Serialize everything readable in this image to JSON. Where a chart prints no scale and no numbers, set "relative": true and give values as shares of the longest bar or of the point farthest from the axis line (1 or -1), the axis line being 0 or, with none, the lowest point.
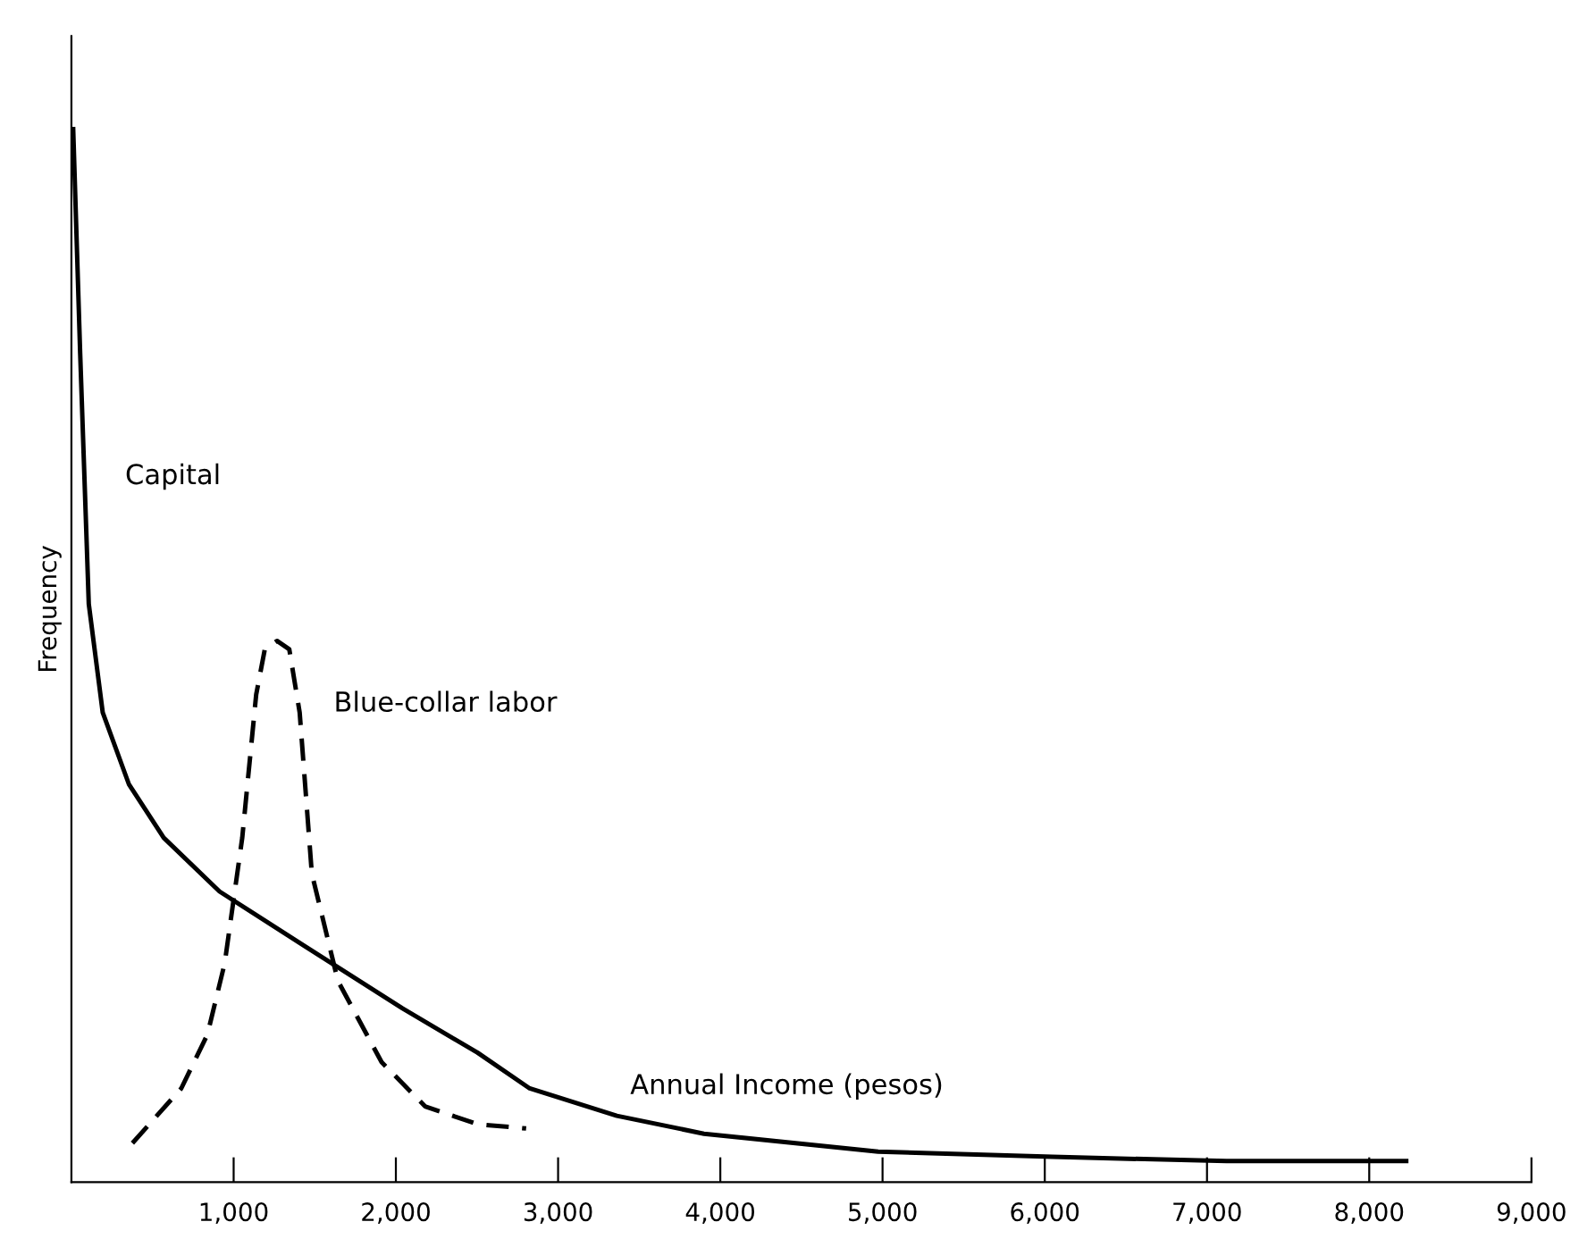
{
  "chart_data": {
    "type": "line",
    "relative": true,
    "xlabel": "Annual Income (pesos)",
    "ylabel": "Frequency",
    "xlim": [
      0,
      9000
    ],
    "xticks": [
      {
        "value": 1000,
        "label": "1,000"
      },
      {
        "value": 2000,
        "label": "2,000"
      },
      {
        "value": 3000,
        "label": "3,000"
      },
      {
        "value": 4000,
        "label": "4,000"
      },
      {
        "value": 5000,
        "label": "5,000"
      },
      {
        "value": 6000,
        "label": "6,000"
      },
      {
        "value": 7000,
        "label": "7,000"
      },
      {
        "value": 8000,
        "label": "8,000"
      },
      {
        "value": 9000,
        "label": "9,000"
      }
    ],
    "grid": false,
    "legend": false,
    "marker": "none",
    "series": [
      {
        "name": "Capital",
        "color": "#000000",
        "line_style": "solid",
        "x": [
          11,
          54,
          107,
          193,
          354,
          569,
          913,
          1429,
          2041,
          2503,
          2825,
          3362,
          3899,
          4973,
          6047,
          7121,
          8228
        ],
        "values": [
          1.0,
          0.787,
          0.549,
          0.446,
          0.378,
          0.327,
          0.276,
          0.225,
          0.165,
          0.123,
          0.089,
          0.063,
          0.046,
          0.029,
          0.024,
          0.02,
          0.02
        ]
      },
      {
        "name": "Blue-collar labor",
        "color": "#000000",
        "line_style": "dashed",
        "x": [
          376,
          677,
          838,
          945,
          1053,
          1139,
          1192,
          1267,
          1343,
          1407,
          1482,
          1643,
          1912,
          2180,
          2503,
          2803
        ],
        "values": [
          0.037,
          0.089,
          0.14,
          0.208,
          0.327,
          0.463,
          0.506,
          0.514,
          0.506,
          0.446,
          0.293,
          0.191,
          0.114,
          0.072,
          0.055,
          0.051
        ]
      }
    ]
  }
}
